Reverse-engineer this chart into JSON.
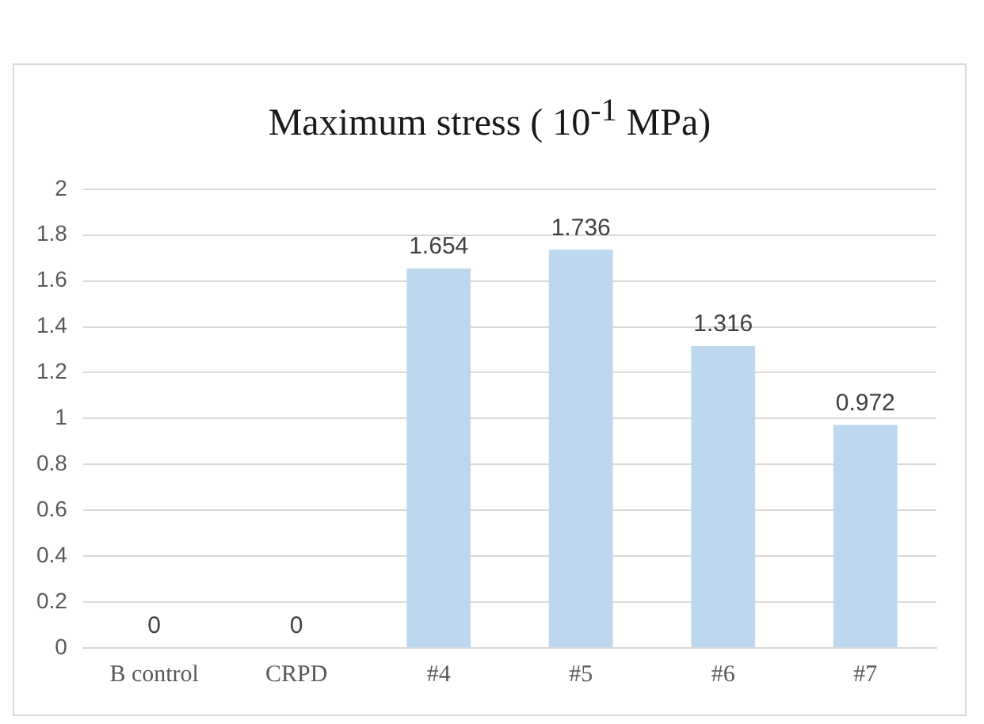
{
  "chart_data": {
    "type": "bar",
    "title": "Maximum stress ( 10$^{-1}$ MPa)",
    "categories": [
      "B control",
      "CRPD",
      "#4",
      "#5",
      "#6",
      "#7"
    ],
    "values": [
      0,
      0,
      1.654,
      1.736,
      1.316,
      0.972
    ],
    "color": "#bdd7ee",
    "ylim": [
      0,
      2
    ],
    "yticks": [
      0,
      0.2,
      0.4,
      0.6,
      0.8,
      1,
      1.2,
      1.4,
      1.6,
      1.8,
      2
    ],
    "grid": "y",
    "data_labels": true,
    "legend": false
  }
}
